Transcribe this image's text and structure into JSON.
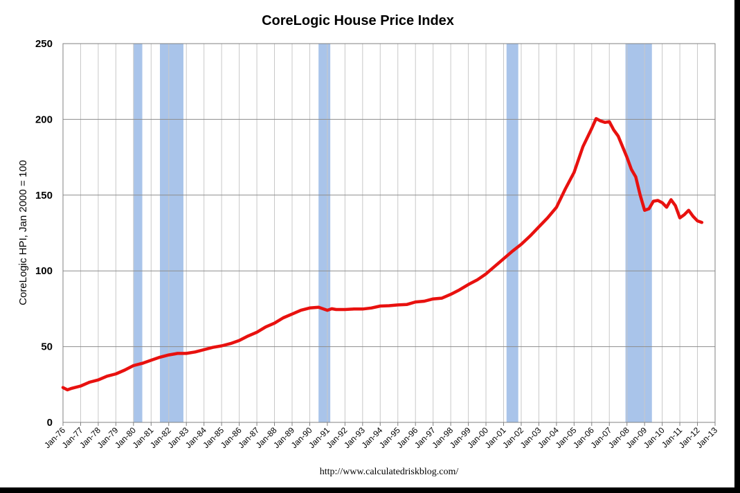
{
  "chart_data": {
    "type": "line",
    "title": "CoreLogic House Price Index",
    "ylabel": "CoreLogic HPI, Jan 2000 = 100",
    "xlabel": "",
    "source": "http://www.calculatedriskblog.com/",
    "ylim": [
      0,
      250
    ],
    "y_ticks": [
      0,
      50,
      100,
      150,
      200,
      250
    ],
    "x_range": [
      "1976-01",
      "2013-01"
    ],
    "x_tick_labels": [
      "Jan-76",
      "Jan-77",
      "Jan-78",
      "Jan-79",
      "Jan-80",
      "Jan-81",
      "Jan-82",
      "Jan-83",
      "Jan-84",
      "Jan-85",
      "Jan-86",
      "Jan-87",
      "Jan-88",
      "Jan-89",
      "Jan-90",
      "Jan-91",
      "Jan-92",
      "Jan-93",
      "Jan-94",
      "Jan-95",
      "Jan-96",
      "Jan-97",
      "Jan-98",
      "Jan-99",
      "Jan-00",
      "Jan-01",
      "Jan-02",
      "Jan-03",
      "Jan-04",
      "Jan-05",
      "Jan-06",
      "Jan-07",
      "Jan-08",
      "Jan-09",
      "Jan-10",
      "Jan-11",
      "Jan-12",
      "Jan-13"
    ],
    "grid": true,
    "legend": "none",
    "recessions": [
      {
        "start": "1980-01",
        "end": "1980-07"
      },
      {
        "start": "1981-07",
        "end": "1982-11"
      },
      {
        "start": "1990-07",
        "end": "1991-03"
      },
      {
        "start": "2001-03",
        "end": "2001-11"
      },
      {
        "start": "2007-12",
        "end": "2009-06"
      }
    ],
    "series": [
      {
        "color": "#e8110f",
        "recession_color": "#a9c4ea",
        "points": [
          [
            "1976-01",
            23
          ],
          [
            "1976-04",
            21.5
          ],
          [
            "1976-07",
            22.5
          ],
          [
            "1977-01",
            24
          ],
          [
            "1977-07",
            26.5
          ],
          [
            "1978-01",
            28
          ],
          [
            "1978-07",
            30.5
          ],
          [
            "1979-01",
            32
          ],
          [
            "1979-07",
            34.5
          ],
          [
            "1980-01",
            37.5
          ],
          [
            "1980-07",
            39
          ],
          [
            "1981-01",
            41
          ],
          [
            "1981-07",
            43
          ],
          [
            "1982-01",
            44.5
          ],
          [
            "1982-07",
            45.5
          ],
          [
            "1983-01",
            45.5
          ],
          [
            "1983-07",
            46.5
          ],
          [
            "1984-01",
            48
          ],
          [
            "1984-07",
            49.5
          ],
          [
            "1985-01",
            50.5
          ],
          [
            "1985-07",
            52
          ],
          [
            "1986-01",
            54
          ],
          [
            "1986-07",
            57
          ],
          [
            "1987-01",
            59.5
          ],
          [
            "1987-07",
            63
          ],
          [
            "1988-01",
            65.5
          ],
          [
            "1988-07",
            69
          ],
          [
            "1989-01",
            71.5
          ],
          [
            "1989-07",
            74
          ],
          [
            "1990-01",
            75.5
          ],
          [
            "1990-07",
            76
          ],
          [
            "1991-01",
            74
          ],
          [
            "1991-04",
            75
          ],
          [
            "1991-07",
            74.5
          ],
          [
            "1992-01",
            74.5
          ],
          [
            "1992-07",
            74.8
          ],
          [
            "1993-01",
            74.8
          ],
          [
            "1993-07",
            75.5
          ],
          [
            "1994-01",
            76.8
          ],
          [
            "1994-07",
            77
          ],
          [
            "1995-01",
            77.5
          ],
          [
            "1995-07",
            77.8
          ],
          [
            "1996-01",
            79.5
          ],
          [
            "1996-07",
            80
          ],
          [
            "1997-01",
            81.5
          ],
          [
            "1997-07",
            82
          ],
          [
            "1998-01",
            84.5
          ],
          [
            "1998-07",
            87.5
          ],
          [
            "1999-01",
            91
          ],
          [
            "1999-07",
            94
          ],
          [
            "2000-01",
            98
          ],
          [
            "2000-07",
            103
          ],
          [
            "2001-01",
            108
          ],
          [
            "2001-07",
            113
          ],
          [
            "2002-01",
            117.5
          ],
          [
            "2002-07",
            123
          ],
          [
            "2003-01",
            129
          ],
          [
            "2003-07",
            135
          ],
          [
            "2004-01",
            142
          ],
          [
            "2004-07",
            154
          ],
          [
            "2005-01",
            165
          ],
          [
            "2005-07",
            182
          ],
          [
            "2006-01",
            194
          ],
          [
            "2006-04",
            200.5
          ],
          [
            "2006-07",
            199
          ],
          [
            "2006-10",
            198
          ],
          [
            "2007-01",
            198.5
          ],
          [
            "2007-04",
            193
          ],
          [
            "2007-07",
            189
          ],
          [
            "2008-01",
            175
          ],
          [
            "2008-04",
            167
          ],
          [
            "2008-07",
            162
          ],
          [
            "2008-10",
            150
          ],
          [
            "2009-01",
            140
          ],
          [
            "2009-04",
            141
          ],
          [
            "2009-07",
            146
          ],
          [
            "2009-10",
            146.5
          ],
          [
            "2010-01",
            145
          ],
          [
            "2010-04",
            142
          ],
          [
            "2010-07",
            147
          ],
          [
            "2010-10",
            143
          ],
          [
            "2011-01",
            135
          ],
          [
            "2011-04",
            137
          ],
          [
            "2011-07",
            140
          ],
          [
            "2011-10",
            136
          ],
          [
            "2012-01",
            133
          ],
          [
            "2012-04",
            132
          ]
        ]
      }
    ]
  }
}
